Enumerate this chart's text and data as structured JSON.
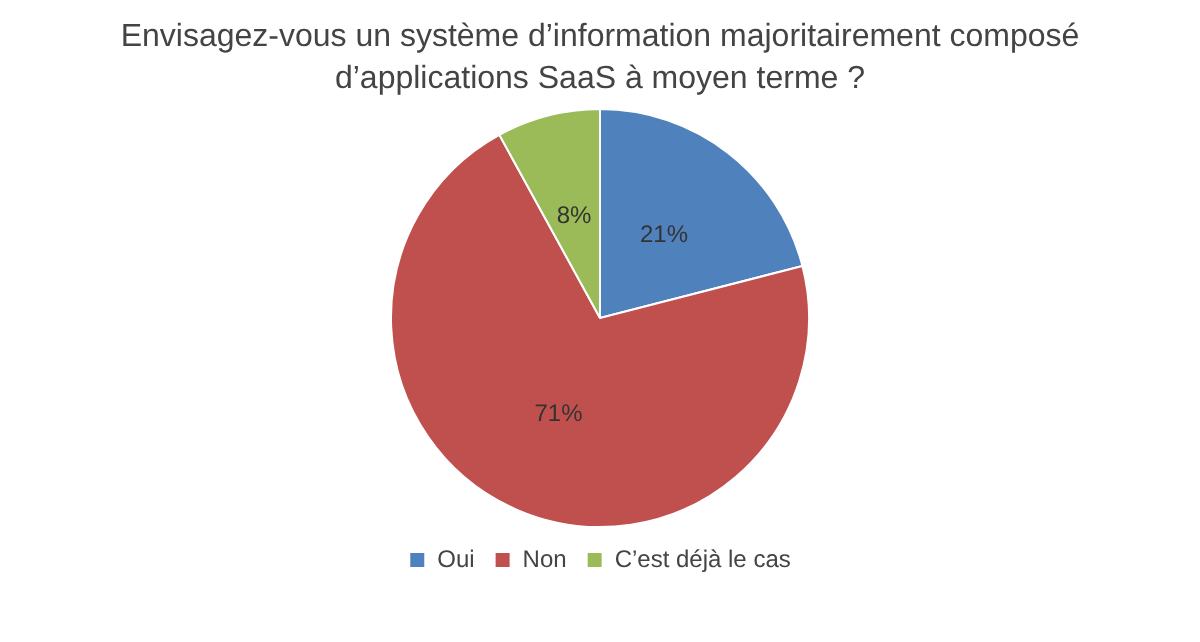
{
  "chart_data": {
    "type": "pie",
    "title": "Envisagez-vous un système d’information majoritairement composé d’applications SaaS à moyen terme ?",
    "categories": [
      "Oui",
      "Non",
      "C’est déjà le cas"
    ],
    "values": [
      21,
      71,
      8
    ],
    "value_labels": [
      "21%",
      "71%",
      "8%"
    ],
    "colors": [
      "#4f81bd",
      "#c0504d",
      "#9bbb59"
    ],
    "legend": "bottom"
  }
}
